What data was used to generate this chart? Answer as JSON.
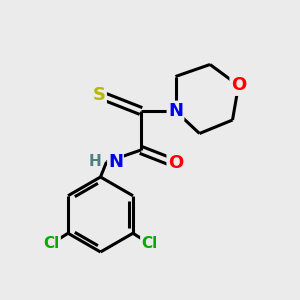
{
  "background_color": "#ebebeb",
  "bond_color": "#000000",
  "bond_width": 2.2,
  "atom_colors": {
    "S": "#b8b800",
    "N": "#0000ee",
    "O": "#ff0000",
    "Cl": "#00aa00",
    "H": "#4a8080",
    "C": "#000000"
  },
  "font_size_large": 13,
  "font_size_small": 11,
  "fig_width": 3.0,
  "fig_height": 3.0,
  "dpi": 100
}
